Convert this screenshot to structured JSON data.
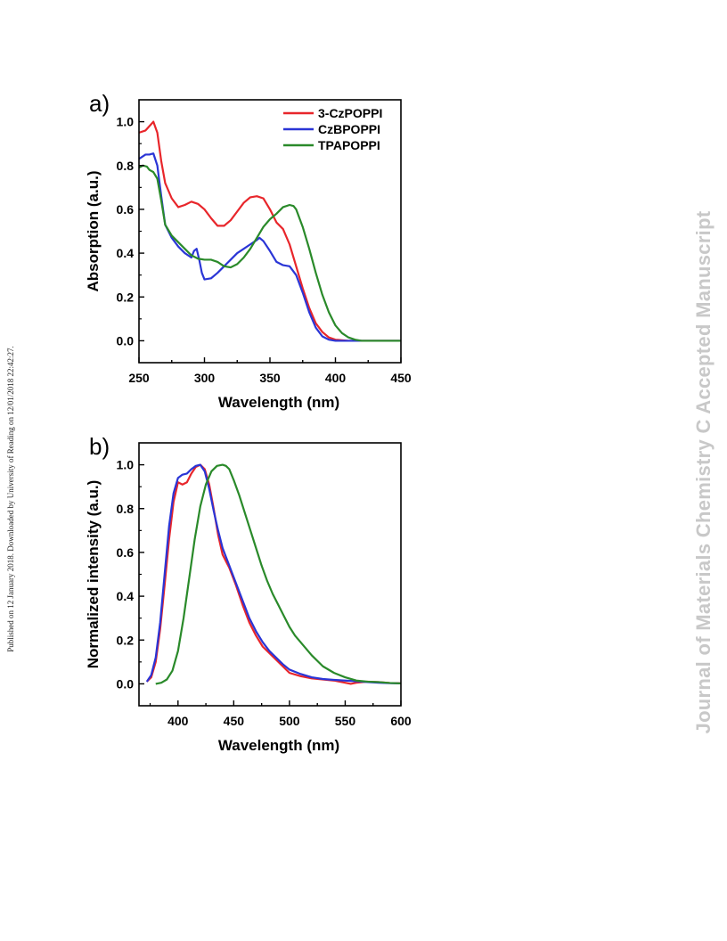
{
  "side_note": "Published on 12 January 2018. Downloaded by University of Reading on 12/01/2018 22:42:27.",
  "watermark": "Journal of Materials Chemistry C Accepted Manuscript",
  "colors": {
    "3-CzPOPPI": "#e8262b",
    "CzBPOPPI": "#2a35d6",
    "TPAPOPPI": "#2a8a2a"
  },
  "chart_data": [
    {
      "type": "line",
      "panel_label": "a)",
      "title": "",
      "xlabel": "Wavelength (nm)",
      "ylabel": "Absorption (a.u.)",
      "xlim": [
        250,
        450
      ],
      "ylim": [
        -0.1,
        1.1
      ],
      "xticks": [
        250,
        300,
        350,
        400,
        450
      ],
      "xtick_labels": [
        "250",
        "300",
        "350",
        "400",
        "450"
      ],
      "yticks": [
        0.0,
        0.2,
        0.4,
        0.6,
        0.8,
        1.0
      ],
      "ytick_labels": [
        "0.0",
        "0.2",
        "0.4",
        "0.6",
        "0.8",
        "1.0"
      ],
      "grid": false,
      "legend": "top-right",
      "series": [
        {
          "name": "3-CzPOPPI",
          "color": "#e8262b",
          "x": [
            250,
            255,
            258,
            261,
            264,
            267,
            270,
            275,
            280,
            285,
            290,
            295,
            300,
            305,
            310,
            315,
            320,
            325,
            330,
            335,
            340,
            345,
            350,
            355,
            360,
            365,
            370,
            375,
            380,
            385,
            390,
            395,
            400,
            410,
            420,
            430,
            440,
            450
          ],
          "y": [
            0.95,
            0.96,
            0.98,
            1.0,
            0.95,
            0.82,
            0.72,
            0.65,
            0.61,
            0.62,
            0.635,
            0.625,
            0.6,
            0.56,
            0.525,
            0.525,
            0.55,
            0.59,
            0.63,
            0.655,
            0.66,
            0.65,
            0.6,
            0.54,
            0.51,
            0.44,
            0.34,
            0.24,
            0.15,
            0.08,
            0.04,
            0.015,
            0.005,
            0.0,
            0.0,
            0.0,
            0.0,
            0.0
          ]
        },
        {
          "name": "CzBPOPPI",
          "color": "#2a35d6",
          "x": [
            250,
            255,
            258,
            261,
            264,
            267,
            270,
            275,
            280,
            285,
            290,
            292,
            294,
            296,
            298,
            300,
            305,
            310,
            315,
            320,
            325,
            330,
            335,
            340,
            342,
            345,
            350,
            355,
            360,
            365,
            370,
            375,
            380,
            385,
            390,
            395,
            400,
            410,
            420,
            430,
            440,
            450
          ],
          "y": [
            0.83,
            0.85,
            0.85,
            0.855,
            0.8,
            0.66,
            0.53,
            0.47,
            0.43,
            0.4,
            0.38,
            0.41,
            0.42,
            0.37,
            0.31,
            0.28,
            0.285,
            0.31,
            0.34,
            0.37,
            0.4,
            0.42,
            0.44,
            0.46,
            0.47,
            0.455,
            0.41,
            0.36,
            0.345,
            0.34,
            0.3,
            0.22,
            0.13,
            0.06,
            0.02,
            0.005,
            0.0,
            0.0,
            0.0,
            0.0,
            0.0,
            0.0
          ]
        },
        {
          "name": "TPAPOPPI",
          "color": "#2a8a2a",
          "x": [
            250,
            253,
            256,
            258,
            261,
            264,
            267,
            270,
            275,
            280,
            285,
            290,
            295,
            300,
            305,
            310,
            315,
            320,
            325,
            330,
            335,
            340,
            345,
            350,
            355,
            360,
            365,
            368,
            370,
            375,
            380,
            385,
            390,
            395,
            400,
            405,
            410,
            415,
            420,
            430,
            440,
            450
          ],
          "y": [
            0.79,
            0.8,
            0.795,
            0.78,
            0.77,
            0.74,
            0.64,
            0.53,
            0.48,
            0.45,
            0.42,
            0.39,
            0.375,
            0.37,
            0.37,
            0.36,
            0.34,
            0.335,
            0.35,
            0.38,
            0.42,
            0.47,
            0.52,
            0.555,
            0.58,
            0.61,
            0.62,
            0.615,
            0.6,
            0.52,
            0.42,
            0.31,
            0.21,
            0.13,
            0.07,
            0.035,
            0.015,
            0.005,
            0.0,
            0.0,
            0.0,
            0.0
          ]
        }
      ]
    },
    {
      "type": "line",
      "panel_label": "b)",
      "title": "",
      "xlabel": "Wavelength (nm)",
      "ylabel": "Normalized intensity (a.u.)",
      "xlim": [
        365,
        600
      ],
      "ylim": [
        -0.1,
        1.1
      ],
      "xticks": [
        400,
        450,
        500,
        550,
        600
      ],
      "xtick_labels": [
        "400",
        "450",
        "500",
        "550",
        "600"
      ],
      "yticks": [
        0.0,
        0.2,
        0.4,
        0.6,
        0.8,
        1.0
      ],
      "ytick_labels": [
        "0.0",
        "0.2",
        "0.4",
        "0.6",
        "0.8",
        "1.0"
      ],
      "grid": false,
      "legend": "",
      "series": [
        {
          "name": "3-CzPOPPI",
          "color": "#e8262b",
          "x": [
            372,
            376,
            380,
            384,
            388,
            392,
            396,
            400,
            404,
            408,
            412,
            416,
            420,
            424,
            428,
            432,
            436,
            440,
            446,
            452,
            458,
            464,
            470,
            476,
            482,
            488,
            494,
            500,
            510,
            520,
            530,
            540,
            550,
            555,
            560,
            570,
            580,
            590,
            600
          ],
          "y": [
            0.01,
            0.03,
            0.1,
            0.25,
            0.45,
            0.66,
            0.83,
            0.92,
            0.91,
            0.92,
            0.96,
            0.99,
            1.0,
            0.98,
            0.91,
            0.8,
            0.68,
            0.59,
            0.53,
            0.45,
            0.36,
            0.28,
            0.22,
            0.17,
            0.14,
            0.11,
            0.08,
            0.05,
            0.035,
            0.025,
            0.02,
            0.015,
            0.005,
            0.0,
            0.005,
            0.01,
            0.008,
            0.004,
            0.003
          ]
        },
        {
          "name": "CzBPOPPI",
          "color": "#2a35d6",
          "x": [
            372,
            376,
            380,
            384,
            388,
            392,
            396,
            400,
            404,
            408,
            412,
            416,
            420,
            424,
            428,
            432,
            436,
            440,
            446,
            452,
            458,
            464,
            470,
            476,
            482,
            488,
            494,
            500,
            510,
            520,
            530,
            540,
            550,
            560,
            570,
            580,
            590,
            600
          ],
          "y": [
            0.01,
            0.04,
            0.12,
            0.28,
            0.5,
            0.72,
            0.87,
            0.94,
            0.955,
            0.96,
            0.98,
            0.995,
            1.0,
            0.97,
            0.89,
            0.79,
            0.7,
            0.62,
            0.54,
            0.46,
            0.38,
            0.3,
            0.24,
            0.19,
            0.15,
            0.12,
            0.09,
            0.065,
            0.045,
            0.03,
            0.022,
            0.018,
            0.015,
            0.012,
            0.008,
            0.005,
            0.003,
            0.002
          ]
        },
        {
          "name": "TPAPOPPI",
          "color": "#2a8a2a",
          "x": [
            380,
            385,
            390,
            395,
            400,
            405,
            410,
            415,
            420,
            425,
            430,
            435,
            440,
            443,
            446,
            450,
            455,
            460,
            465,
            470,
            475,
            480,
            485,
            490,
            495,
            500,
            505,
            510,
            520,
            530,
            540,
            550,
            560,
            570,
            580,
            590,
            600
          ],
          "y": [
            0.0,
            0.005,
            0.02,
            0.06,
            0.15,
            0.3,
            0.48,
            0.66,
            0.81,
            0.91,
            0.97,
            0.995,
            1.0,
            0.995,
            0.98,
            0.93,
            0.86,
            0.78,
            0.7,
            0.62,
            0.54,
            0.47,
            0.41,
            0.36,
            0.31,
            0.26,
            0.22,
            0.19,
            0.13,
            0.08,
            0.05,
            0.03,
            0.015,
            0.01,
            0.008,
            0.004,
            0.002
          ]
        }
      ]
    }
  ]
}
